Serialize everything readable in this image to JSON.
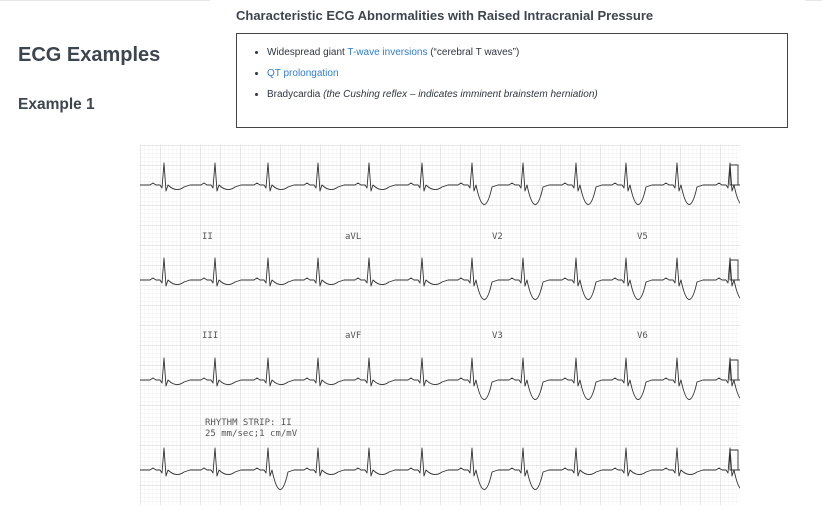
{
  "page": {
    "title": "ECG Examples",
    "section_title": "Example 1"
  },
  "callout": {
    "title": "Characteristic ECG Abnormalities with Raised Intracranial Pressure",
    "items": [
      {
        "prefix": "Widespread giant ",
        "link": "T-wave inversions",
        "suffix": " (“cerebral T waves”)"
      },
      {
        "link": "QT prolongation"
      },
      {
        "text": "Bradycardia ",
        "italic": "(the Cushing reflex – indicates imminent brainstem herniation)"
      }
    ]
  },
  "ecg": {
    "lead_labels": [
      "II",
      "aVL",
      "V2",
      "V5",
      "III",
      "aVF",
      "V3",
      "V6"
    ],
    "rhythm_label": "RHYTHM STRIP: II",
    "calibration_label": "25 mm/sec;1 cm/mV"
  }
}
